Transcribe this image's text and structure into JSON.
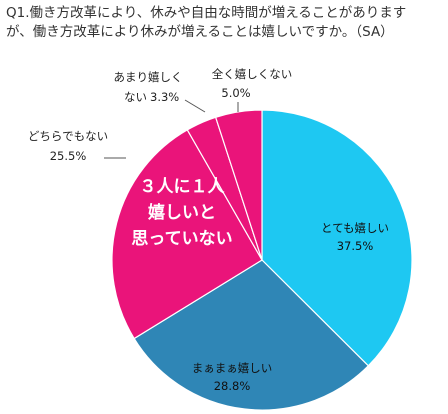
{
  "question": {
    "line1": "Q1.働き方改革により、休みや自由な時間が増えることがあります",
    "line2": "が、働き方改革により休みが増えることは嬉しいですか。（SA）"
  },
  "callout": {
    "lines": [
      "３人に１人",
      "嬉しいと",
      "思っていない"
    ],
    "color": "#ffffff"
  },
  "chart_data": {
    "type": "pie",
    "title": "",
    "series": [
      {
        "label": "とても嬉しい",
        "value": 37.5,
        "value_text": "37.5%",
        "color": "#1ec8f2"
      },
      {
        "label": "まぁまぁ嬉しい",
        "value": 28.8,
        "value_text": "28.8%",
        "color": "#2f86b6"
      },
      {
        "label": "どちらでもない",
        "value": 25.5,
        "value_text": "25.5%",
        "color": "#ea147a"
      },
      {
        "label": "あまり嬉しくない",
        "label_lines": [
          "あまり嬉しく",
          "ない"
        ],
        "value": 3.3,
        "value_text": "3.3%",
        "color": "#ea147a"
      },
      {
        "label": "全く嬉しくない",
        "value": 5.0,
        "value_text": "5.0%",
        "color": "#ea147a"
      }
    ]
  }
}
